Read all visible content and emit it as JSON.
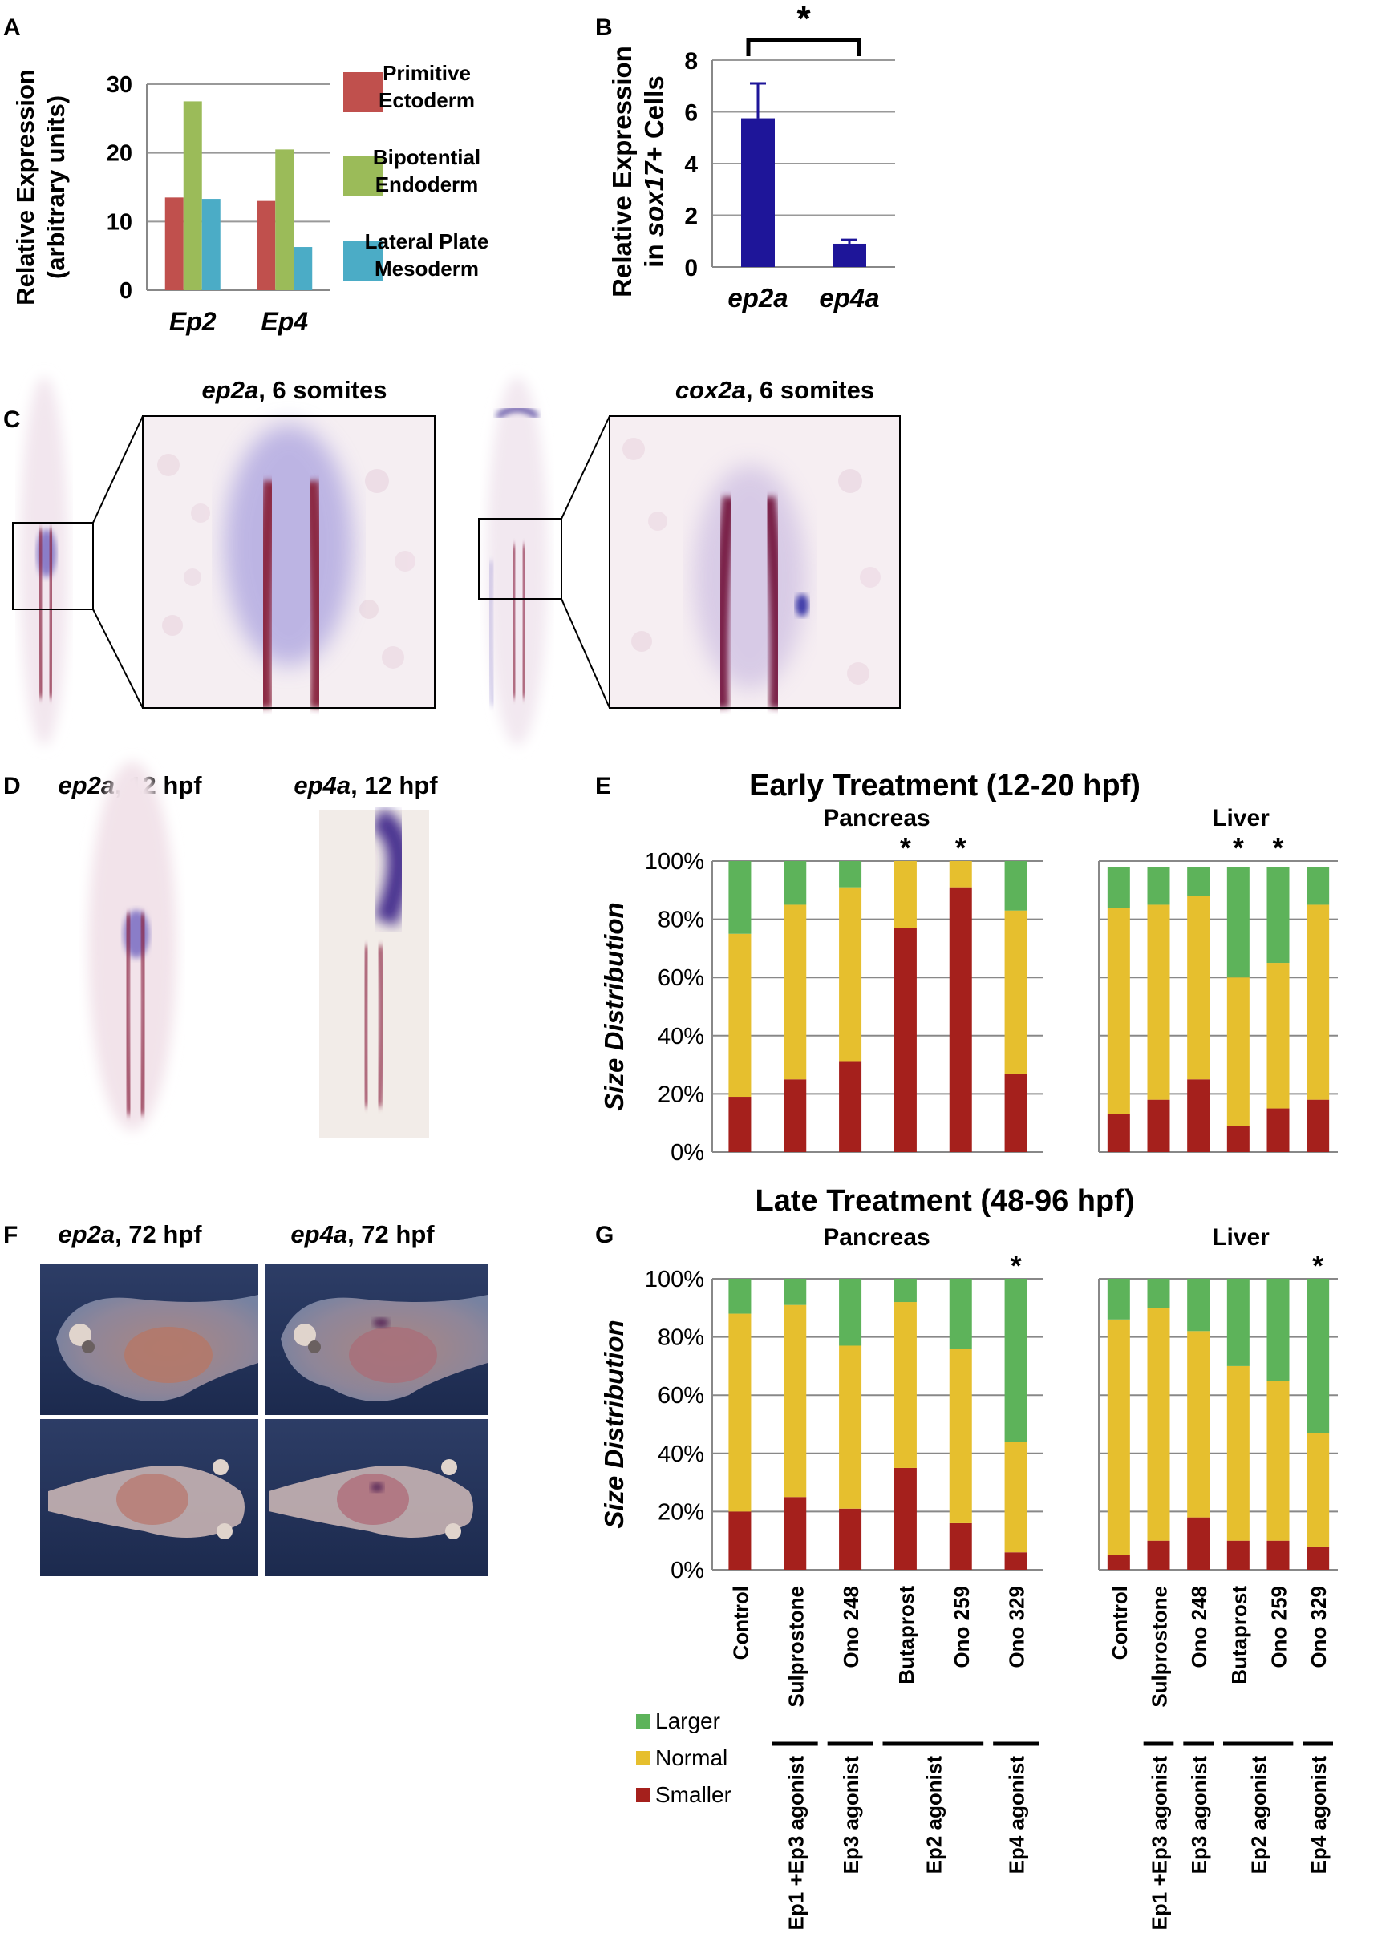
{
  "panels": {
    "A": "A",
    "B": "B",
    "C": "C",
    "D": "D",
    "E": "E",
    "F": "F",
    "G": "G"
  },
  "panel_c": {
    "left_title_gene": "ep2a",
    "left_title_rest": ", 6 somites",
    "right_title_gene": "cox2a",
    "right_title_rest": ", 6 somites"
  },
  "panel_d": {
    "left_gene": "ep2a",
    "left_rest": ", 12 hpf",
    "right_gene": "ep4a",
    "right_rest": ", 12 hpf"
  },
  "panel_f": {
    "left_gene": "ep2a",
    "left_rest": ", 72 hpf",
    "right_gene": "ep4a",
    "right_rest": ", 72 hpf"
  },
  "early_title": "Early Treatment (12-20 hpf)",
  "late_title": "Late Treatment (48-96 hpf)",
  "legend_e": [
    {
      "label": "Larger",
      "color": "#5db35a"
    },
    {
      "label": "Normal",
      "color": "#e6bf2e"
    },
    {
      "label": "Smaller",
      "color": "#a5201c"
    }
  ],
  "chart_data": [
    {
      "id": "A",
      "type": "bar",
      "categories": [
        "Ep2",
        "Ep4"
      ],
      "ylabel": "Relative Expression (arbitrary units)",
      "ylim": [
        0,
        30
      ],
      "yticks": [
        0,
        10,
        20,
        30
      ],
      "legend": "right",
      "series": [
        {
          "name": "Primitive Ectoderm",
          "color": "#c0504d",
          "values": [
            13.5,
            13
          ]
        },
        {
          "name": "Bipotential Endoderm",
          "color": "#9bbb59",
          "values": [
            27.5,
            20.5
          ]
        },
        {
          "name": "Lateral Plate Mesoderm",
          "color": "#4bacc6",
          "values": [
            13.3,
            6.3
          ]
        }
      ]
    },
    {
      "id": "B",
      "type": "bar",
      "categories": [
        "ep2a",
        "ep4a"
      ],
      "ylabel_line1": "Relative Expression",
      "ylabel_line2_pre": "in ",
      "ylabel_line2_gene": "sox17",
      "ylabel_line2_post": "+ Cells",
      "ylim": [
        0,
        8
      ],
      "yticks": [
        0,
        2,
        4,
        6,
        8
      ],
      "values": [
        5.75,
        0.9
      ],
      "errors": [
        1.35,
        0.15
      ],
      "color": "#1e1599",
      "significance": "*"
    },
    {
      "id": "E-pancreas",
      "type": "bar",
      "subtitle": "Pancreas",
      "ylabel": "Size Distribution",
      "yticks": [
        "0%",
        "20%",
        "40%",
        "60%",
        "80%",
        "100%"
      ],
      "categories": [
        "Control",
        "Sulprostone",
        "Ono 248",
        "Butaprost",
        "Ono 259",
        "Ono 329"
      ],
      "series": [
        {
          "name": "Smaller",
          "values": [
            19,
            25,
            31,
            77,
            91,
            27
          ]
        },
        {
          "name": "Normal",
          "values": [
            56,
            60,
            60,
            23,
            9,
            56
          ]
        },
        {
          "name": "Larger",
          "values": [
            25,
            15,
            9,
            0,
            0,
            17
          ]
        }
      ],
      "significant": [
        "",
        "",
        "",
        "*",
        "*",
        ""
      ]
    },
    {
      "id": "E-liver",
      "type": "bar",
      "subtitle": "Liver",
      "categories": [
        "Control",
        "Sulprostone",
        "Ono 248",
        "Butaprost",
        "Ono 259",
        "Ono 329"
      ],
      "series": [
        {
          "name": "Smaller",
          "values": [
            13,
            18,
            25,
            9,
            15,
            18
          ]
        },
        {
          "name": "Normal",
          "values": [
            71,
            67,
            63,
            51,
            50,
            67
          ]
        },
        {
          "name": "Larger",
          "values": [
            14,
            13,
            10,
            38,
            33,
            13
          ]
        }
      ],
      "significant": [
        "",
        "",
        "",
        "*",
        "*",
        ""
      ]
    },
    {
      "id": "G-pancreas",
      "type": "bar",
      "subtitle": "Pancreas",
      "ylabel": "Size Distribution",
      "yticks": [
        "0%",
        "20%",
        "40%",
        "60%",
        "80%",
        "100%"
      ],
      "categories": [
        "Control",
        "Sulprostone",
        "Ono 248",
        "Butaprost",
        "Ono 259",
        "Ono 329"
      ],
      "series": [
        {
          "name": "Smaller",
          "values": [
            20,
            25,
            21,
            35,
            16,
            6
          ]
        },
        {
          "name": "Normal",
          "values": [
            68,
            66,
            56,
            57,
            60,
            38
          ]
        },
        {
          "name": "Larger",
          "values": [
            12,
            9,
            23,
            8,
            24,
            56
          ]
        }
      ],
      "significant": [
        "",
        "",
        "",
        "",
        "",
        "*"
      ]
    },
    {
      "id": "G-liver",
      "type": "bar",
      "subtitle": "Liver",
      "categories": [
        "Control",
        "Sulprostone",
        "Ono 248",
        "Butaprost",
        "Ono 259",
        "Ono 329"
      ],
      "series": [
        {
          "name": "Smaller",
          "values": [
            5,
            10,
            18,
            10,
            10,
            8
          ]
        },
        {
          "name": "Normal",
          "values": [
            81,
            80,
            64,
            60,
            55,
            39
          ]
        },
        {
          "name": "Larger",
          "values": [
            14,
            10,
            18,
            30,
            35,
            53
          ]
        }
      ],
      "significant": [
        "",
        "",
        "",
        "",
        "",
        "*"
      ]
    }
  ],
  "agonist_groups": [
    {
      "label": "Ep1 +Ep3 agonist",
      "start": 1,
      "end": 1
    },
    {
      "label": "Ep3 agonist",
      "start": 2,
      "end": 2
    },
    {
      "label": "Ep2 agonist",
      "start": 3,
      "end": 4
    },
    {
      "label": "Ep4 agonist",
      "start": 5,
      "end": 5
    }
  ],
  "colors": {
    "larger": "#5db35a",
    "normal": "#e6bf2e",
    "smaller": "#a5201c"
  }
}
